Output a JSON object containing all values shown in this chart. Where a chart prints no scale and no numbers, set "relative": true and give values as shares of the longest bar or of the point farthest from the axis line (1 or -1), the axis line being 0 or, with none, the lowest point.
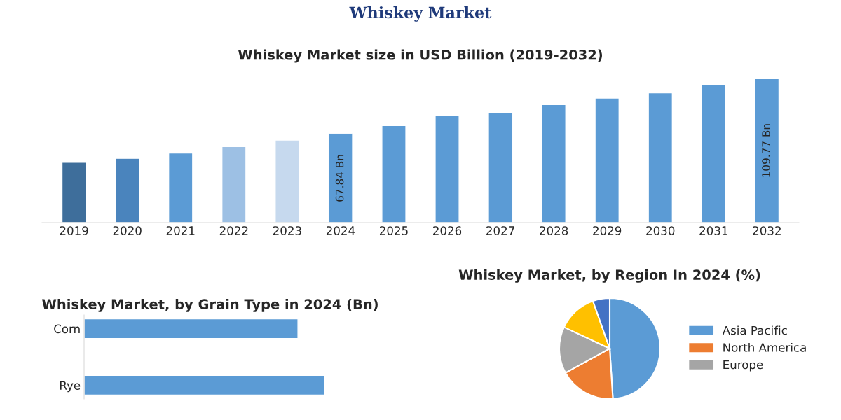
{
  "chart_data": [
    {
      "type": "bar",
      "title": "Whiskey Market",
      "subtitle": "Whiskey Market size in USD Billion (2019-2032)",
      "categories": [
        "2019",
        "2020",
        "2021",
        "2022",
        "2023",
        "2024",
        "2025",
        "2026",
        "2027",
        "2028",
        "2029",
        "2030",
        "2031",
        "2032"
      ],
      "values": [
        46,
        49,
        53,
        58,
        63,
        67.84,
        74,
        82,
        84,
        90,
        95,
        99,
        105,
        109.77
      ],
      "colors": [
        "#3e6e9b",
        "#4a84bd",
        "#5b9bd5",
        "#9dc0e4",
        "#c6d9ee",
        "#5b9bd5",
        "#5b9bd5",
        "#5b9bd5",
        "#5b9bd5",
        "#5b9bd5",
        "#5b9bd5",
        "#5b9bd5",
        "#5b9bd5",
        "#5b9bd5"
      ],
      "value_labels": [
        null,
        null,
        null,
        null,
        null,
        "67.84 Bn",
        null,
        null,
        null,
        null,
        null,
        null,
        null,
        "109.77 Bn"
      ],
      "tick_labels": "x",
      "grid": false,
      "legend": false
    },
    {
      "type": "bar",
      "orientation": "horizontal",
      "relative": true,
      "title": "Whiskey Market, by Grain Type in 2024 (Bn)",
      "categories": [
        "Corn",
        "Rye"
      ],
      "values": [
        0.89,
        1
      ],
      "color": "#5b9bd5",
      "grid": false,
      "legend": false
    },
    {
      "type": "pie",
      "title": "Whiskey Market, by Region In 2024 (%)",
      "categories": [
        "Asia Pacific",
        "North America",
        "Europe",
        null,
        null
      ],
      "values": [
        49,
        18,
        15,
        12.6,
        5.4
      ],
      "colors": [
        "#5b9bd5",
        "#ed7d31",
        "#a5a5a5",
        "#ffc000",
        "#4472c4"
      ],
      "legend": "right"
    }
  ]
}
